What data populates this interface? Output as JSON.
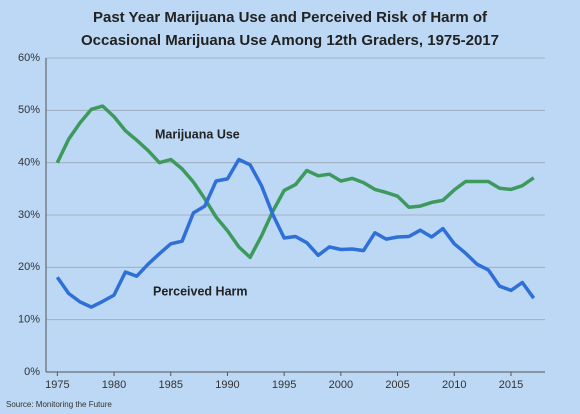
{
  "chart_data": {
    "type": "line",
    "title": [
      "Past Year Marijuana Use and Perceived Risk of Harm of",
      "Occasional Marijuana Use Among 12th Graders, 1975-2017"
    ],
    "source": "Source: Monitoring the Future",
    "x": [
      1975,
      1976,
      1977,
      1978,
      1979,
      1980,
      1981,
      1982,
      1983,
      1984,
      1985,
      1986,
      1987,
      1988,
      1989,
      1990,
      1991,
      1992,
      1993,
      1994,
      1995,
      1996,
      1997,
      1998,
      1999,
      2000,
      2001,
      2002,
      2003,
      2004,
      2005,
      2006,
      2007,
      2008,
      2009,
      2010,
      2011,
      2012,
      2013,
      2014,
      2015,
      2016,
      2017
    ],
    "series": [
      {
        "name": "Marijuana Use",
        "color": "#3d9a5c",
        "values": [
          40.0,
          44.5,
          47.6,
          50.2,
          50.8,
          48.8,
          46.1,
          44.3,
          42.3,
          40.0,
          40.6,
          38.8,
          36.3,
          33.1,
          29.6,
          27.0,
          23.9,
          21.9,
          26.0,
          30.7,
          34.7,
          35.8,
          38.5,
          37.5,
          37.8,
          36.5,
          37.0,
          36.2,
          34.9,
          34.3,
          33.6,
          31.5,
          31.7,
          32.4,
          32.8,
          34.8,
          36.4,
          36.4,
          36.4,
          35.1,
          34.9,
          35.6,
          37.1
        ]
      },
      {
        "name": "Perceived Harm",
        "color": "#2f6fd8",
        "values": [
          18.1,
          15.0,
          13.4,
          12.4,
          13.5,
          14.7,
          19.1,
          18.3,
          20.6,
          22.6,
          24.5,
          25.0,
          30.4,
          31.7,
          36.5,
          36.9,
          40.6,
          39.6,
          35.6,
          30.1,
          25.6,
          25.9,
          24.7,
          22.3,
          23.9,
          23.4,
          23.5,
          23.2,
          26.6,
          25.4,
          25.8,
          25.9,
          27.1,
          25.8,
          27.4,
          24.5,
          22.7,
          20.6,
          19.5,
          16.4,
          15.6,
          17.1,
          14.1
        ]
      }
    ],
    "xlim": [
      1974,
      2018
    ],
    "xticks": [
      1975,
      1980,
      1985,
      1990,
      1995,
      2000,
      2005,
      2010,
      2015
    ],
    "ylim": [
      0,
      60
    ],
    "yticks": [
      {
        "value": 0,
        "label": "0%"
      },
      {
        "value": 10,
        "label": "10%"
      },
      {
        "value": 20,
        "label": "20%"
      },
      {
        "value": 30,
        "label": "30%"
      },
      {
        "value": 40,
        "label": "40%"
      },
      {
        "value": 50,
        "label": "50%"
      },
      {
        "value": 60,
        "label": "60%"
      }
    ],
    "grid": true
  }
}
